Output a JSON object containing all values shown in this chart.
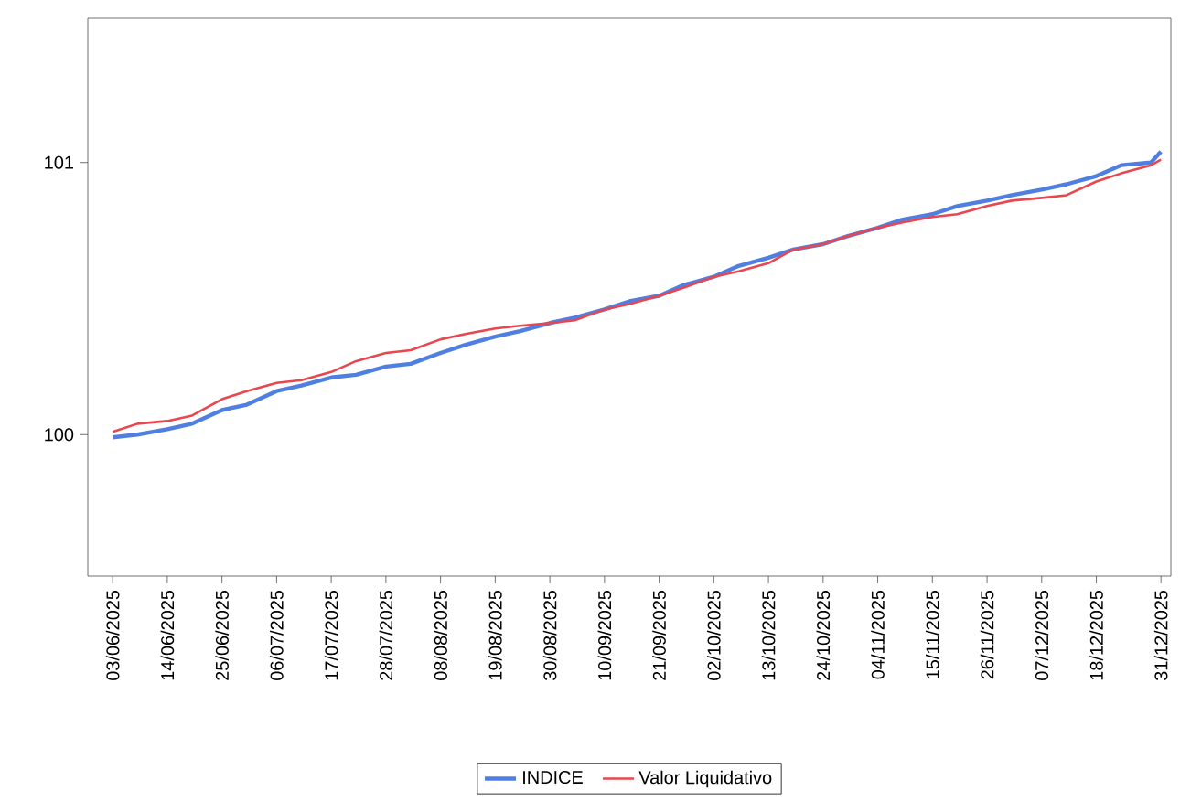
{
  "chart_data": {
    "type": "line",
    "x": [
      "2025-06-03",
      "2025-06-08",
      "2025-06-14",
      "2025-06-19",
      "2025-06-25",
      "2025-06-30",
      "2025-07-06",
      "2025-07-11",
      "2025-07-17",
      "2025-07-22",
      "2025-07-28",
      "2025-08-02",
      "2025-08-08",
      "2025-08-13",
      "2025-08-19",
      "2025-08-24",
      "2025-08-30",
      "2025-09-04",
      "2025-09-10",
      "2025-09-15",
      "2025-09-21",
      "2025-09-26",
      "2025-10-02",
      "2025-10-07",
      "2025-10-13",
      "2025-10-18",
      "2025-10-24",
      "2025-10-29",
      "2025-11-04",
      "2025-11-09",
      "2025-11-15",
      "2025-11-20",
      "2025-11-26",
      "2025-12-01",
      "2025-12-07",
      "2025-12-12",
      "2025-12-18",
      "2025-12-23",
      "2025-12-29",
      "2025-12-31"
    ],
    "series": [
      {
        "name": "INDICE",
        "color": "#4f7fe0",
        "values": [
          99.99,
          100.0,
          100.02,
          100.04,
          100.09,
          100.11,
          100.16,
          100.18,
          100.21,
          100.22,
          100.25,
          100.26,
          100.3,
          100.33,
          100.36,
          100.38,
          100.41,
          100.43,
          100.46,
          100.49,
          100.51,
          100.55,
          100.58,
          100.62,
          100.65,
          100.68,
          100.7,
          100.73,
          100.76,
          100.79,
          100.81,
          100.84,
          100.86,
          100.88,
          100.9,
          100.92,
          100.95,
          100.99,
          101.0,
          101.04
        ]
      },
      {
        "name": "Valor Liquidativo",
        "color": "#e8474f",
        "values": [
          100.01,
          100.04,
          100.05,
          100.07,
          100.13,
          100.16,
          100.19,
          100.2,
          100.23,
          100.27,
          100.3,
          100.31,
          100.35,
          100.37,
          100.39,
          100.4,
          100.41,
          100.42,
          100.46,
          100.48,
          100.51,
          100.54,
          100.58,
          100.6,
          100.63,
          100.68,
          100.7,
          100.73,
          100.76,
          100.78,
          100.8,
          100.81,
          100.84,
          100.86,
          100.87,
          100.88,
          100.93,
          100.96,
          100.99,
          101.01
        ]
      }
    ],
    "xlim": [
      "2025-05-29",
      "2026-01-02"
    ],
    "xticks": [
      {
        "value": "2025-06-03",
        "label": "03/06/2025"
      },
      {
        "value": "2025-06-14",
        "label": "14/06/2025"
      },
      {
        "value": "2025-06-25",
        "label": "25/06/2025"
      },
      {
        "value": "2025-07-06",
        "label": "06/07/2025"
      },
      {
        "value": "2025-07-17",
        "label": "17/07/2025"
      },
      {
        "value": "2025-07-28",
        "label": "28/07/2025"
      },
      {
        "value": "2025-08-08",
        "label": "08/08/2025"
      },
      {
        "value": "2025-08-19",
        "label": "19/08/2025"
      },
      {
        "value": "2025-08-30",
        "label": "30/08/2025"
      },
      {
        "value": "2025-09-10",
        "label": "10/09/2025"
      },
      {
        "value": "2025-09-21",
        "label": "21/09/2025"
      },
      {
        "value": "2025-10-02",
        "label": "02/10/2025"
      },
      {
        "value": "2025-10-13",
        "label": "13/10/2025"
      },
      {
        "value": "2025-10-24",
        "label": "24/10/2025"
      },
      {
        "value": "2025-11-04",
        "label": "04/11/2025"
      },
      {
        "value": "2025-11-15",
        "label": "15/11/2025"
      },
      {
        "value": "2025-11-26",
        "label": "26/11/2025"
      },
      {
        "value": "2025-12-07",
        "label": "07/12/2025"
      },
      {
        "value": "2025-12-18",
        "label": "18/12/2025"
      },
      {
        "value": "2025-12-31",
        "label": "31/12/2025"
      }
    ],
    "ylim": [
      99.48,
      101.53
    ],
    "yticks": [
      100,
      101
    ],
    "legend": "bottom"
  }
}
